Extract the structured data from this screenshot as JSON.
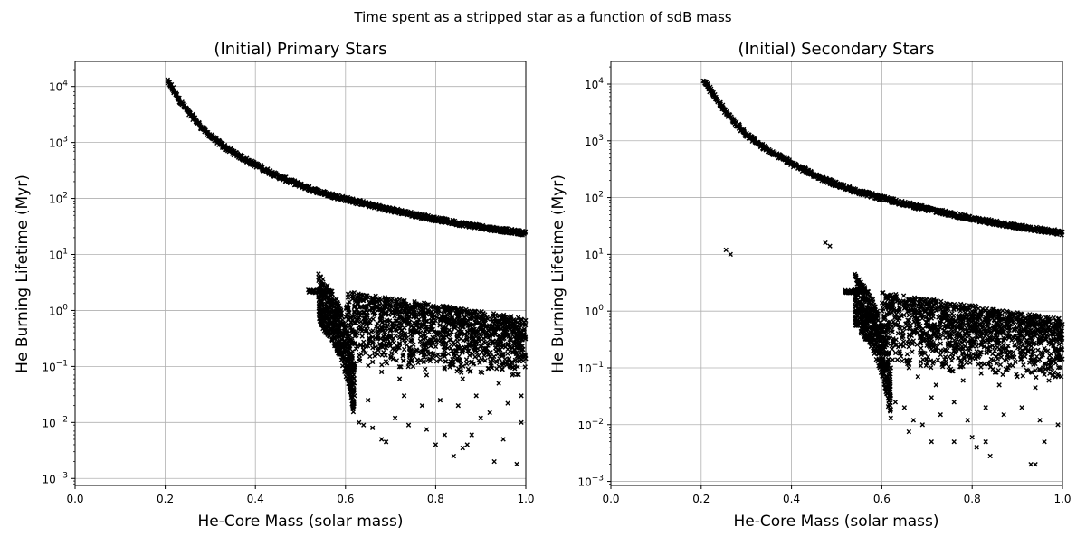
{
  "figure": {
    "suptitle": "Time spent as a stripped star as a function of sdB mass"
  },
  "chart_data": [
    {
      "type": "scatter",
      "title": "(Initial) Primary Stars",
      "xlabel": "He-Core Mass (solar mass)",
      "ylabel": "He Burning Lifetime (Myr)",
      "xlim": [
        0.0,
        1.0
      ],
      "ylim": [
        0.00075,
        28000
      ],
      "yscale": "log",
      "grid": true,
      "marker": "x",
      "marker_color": "#000000",
      "x_ticks": [
        {
          "value": 0.0,
          "label": "0.0"
        },
        {
          "value": 0.2,
          "label": "0.2"
        },
        {
          "value": 0.4,
          "label": "0.4"
        },
        {
          "value": 0.6,
          "label": "0.6"
        },
        {
          "value": 0.8,
          "label": "0.8"
        },
        {
          "value": 1.0,
          "label": "1.0"
        }
      ],
      "y_ticks": [
        {
          "value": 0.001,
          "base": "10",
          "exp": "−3"
        },
        {
          "value": 0.01,
          "base": "10",
          "exp": "−2"
        },
        {
          "value": 0.1,
          "base": "10",
          "exp": "−1"
        },
        {
          "value": 1,
          "base": "10",
          "exp": "0"
        },
        {
          "value": 10,
          "base": "10",
          "exp": "1"
        },
        {
          "value": 100,
          "base": "10",
          "exp": "2"
        },
        {
          "value": 1000,
          "base": "10",
          "exp": "3"
        },
        {
          "value": 10000,
          "base": "10",
          "exp": "4"
        }
      ],
      "upper_sequence": [
        [
          0.205,
          12000
        ],
        [
          0.21,
          11000
        ],
        [
          0.22,
          8000
        ],
        [
          0.23,
          6000
        ],
        [
          0.24,
          4600
        ],
        [
          0.25,
          3600
        ],
        [
          0.26,
          2900
        ],
        [
          0.28,
          1900
        ],
        [
          0.3,
          1300
        ],
        [
          0.33,
          850
        ],
        [
          0.36,
          600
        ],
        [
          0.4,
          400
        ],
        [
          0.45,
          250
        ],
        [
          0.5,
          170
        ],
        [
          0.55,
          125
        ],
        [
          0.6,
          98
        ],
        [
          0.65,
          78
        ],
        [
          0.7,
          63
        ],
        [
          0.75,
          52
        ],
        [
          0.8,
          43
        ],
        [
          0.85,
          36
        ],
        [
          0.9,
          31
        ],
        [
          0.95,
          27
        ],
        [
          1.0,
          24
        ]
      ],
      "lower_flat": [
        [
          0.52,
          2.2
        ],
        [
          0.53,
          2.2
        ],
        [
          0.54,
          2.25
        ],
        [
          0.55,
          2.25
        ],
        [
          0.56,
          2.3
        ]
      ],
      "lower_ridge": [
        [
          0.54,
          4.5
        ],
        [
          0.55,
          3.6
        ],
        [
          0.56,
          2.8
        ],
        [
          0.57,
          2.2
        ],
        [
          0.58,
          1.6
        ],
        [
          0.59,
          1.0
        ],
        [
          0.6,
          0.55
        ],
        [
          0.61,
          0.28
        ],
        [
          0.615,
          0.14
        ],
        [
          0.62,
          0.1
        ]
      ],
      "lower_cloud": [
        [
          0.62,
          1.2
        ],
        [
          0.63,
          0.9
        ],
        [
          0.64,
          1.5
        ],
        [
          0.65,
          0.6
        ],
        [
          0.66,
          1.1
        ],
        [
          0.67,
          0.35
        ],
        [
          0.68,
          0.8
        ],
        [
          0.69,
          1.3
        ],
        [
          0.7,
          0.45
        ],
        [
          0.71,
          0.9
        ],
        [
          0.72,
          0.25
        ],
        [
          0.73,
          0.7
        ],
        [
          0.74,
          1.0
        ],
        [
          0.75,
          0.4
        ],
        [
          0.76,
          0.6
        ],
        [
          0.77,
          0.18
        ],
        [
          0.78,
          0.85
        ],
        [
          0.79,
          0.5
        ],
        [
          0.8,
          0.3
        ],
        [
          0.81,
          0.7
        ],
        [
          0.82,
          0.15
        ],
        [
          0.83,
          0.45
        ],
        [
          0.84,
          0.6
        ],
        [
          0.85,
          0.22
        ],
        [
          0.86,
          0.5
        ],
        [
          0.87,
          0.35
        ],
        [
          0.88,
          0.12
        ],
        [
          0.89,
          0.4
        ],
        [
          0.9,
          0.55
        ],
        [
          0.91,
          0.2
        ],
        [
          0.92,
          0.3
        ],
        [
          0.93,
          0.45
        ],
        [
          0.94,
          0.1
        ],
        [
          0.95,
          0.35
        ],
        [
          0.96,
          0.25
        ],
        [
          0.97,
          0.5
        ],
        [
          0.98,
          0.15
        ],
        [
          0.99,
          0.4
        ],
        [
          0.64,
          0.2
        ],
        [
          0.66,
          0.12
        ],
        [
          0.68,
          0.08
        ],
        [
          0.7,
          0.15
        ],
        [
          0.72,
          0.06
        ],
        [
          0.75,
          0.1
        ],
        [
          0.78,
          0.07
        ],
        [
          0.82,
          0.09
        ],
        [
          0.86,
          0.06
        ],
        [
          0.9,
          0.08
        ],
        [
          0.94,
          0.05
        ],
        [
          0.97,
          0.07
        ],
        [
          0.63,
          0.01
        ],
        [
          0.64,
          0.009
        ],
        [
          0.66,
          0.008
        ],
        [
          0.68,
          0.005
        ],
        [
          0.69,
          0.0045
        ],
        [
          0.71,
          0.012
        ],
        [
          0.74,
          0.009
        ],
        [
          0.78,
          0.0075
        ],
        [
          0.8,
          0.004
        ],
        [
          0.82,
          0.006
        ],
        [
          0.84,
          0.0025
        ],
        [
          0.86,
          0.0035
        ],
        [
          0.87,
          0.004
        ],
        [
          0.88,
          0.006
        ],
        [
          0.9,
          0.012
        ],
        [
          0.93,
          0.002
        ],
        [
          0.95,
          0.005
        ],
        [
          0.98,
          0.0018
        ],
        [
          0.99,
          0.01
        ],
        [
          0.62,
          0.03
        ],
        [
          0.65,
          0.025
        ],
        [
          0.73,
          0.03
        ],
        [
          0.77,
          0.02
        ],
        [
          0.81,
          0.025
        ],
        [
          0.85,
          0.02
        ],
        [
          0.89,
          0.03
        ],
        [
          0.92,
          0.015
        ],
        [
          0.96,
          0.022
        ],
        [
          0.99,
          0.03
        ]
      ]
    },
    {
      "type": "scatter",
      "title": "(Initial) Secondary Stars",
      "xlabel": "He-Core Mass (solar mass)",
      "ylabel": "He Burning Lifetime (Myr)",
      "xlim": [
        0.0,
        1.0
      ],
      "ylim": [
        0.00085,
        25000
      ],
      "yscale": "log",
      "grid": true,
      "marker": "x",
      "marker_color": "#000000",
      "x_ticks": [
        {
          "value": 0.0,
          "label": "0.0"
        },
        {
          "value": 0.2,
          "label": "0.2"
        },
        {
          "value": 0.4,
          "label": "0.4"
        },
        {
          "value": 0.6,
          "label": "0.6"
        },
        {
          "value": 0.8,
          "label": "0.8"
        },
        {
          "value": 1.0,
          "label": "1.0"
        }
      ],
      "y_ticks": [
        {
          "value": 0.001,
          "base": "10",
          "exp": "−3"
        },
        {
          "value": 0.01,
          "base": "10",
          "exp": "−2"
        },
        {
          "value": 0.1,
          "base": "10",
          "exp": "−1"
        },
        {
          "value": 1,
          "base": "10",
          "exp": "0"
        },
        {
          "value": 10,
          "base": "10",
          "exp": "1"
        },
        {
          "value": 100,
          "base": "10",
          "exp": "2"
        },
        {
          "value": 1000,
          "base": "10",
          "exp": "3"
        },
        {
          "value": 10000,
          "base": "10",
          "exp": "4"
        }
      ],
      "upper_sequence": [
        [
          0.205,
          11500
        ],
        [
          0.21,
          10500
        ],
        [
          0.22,
          8000
        ],
        [
          0.23,
          6000
        ],
        [
          0.24,
          4600
        ],
        [
          0.25,
          3600
        ],
        [
          0.26,
          2900
        ],
        [
          0.28,
          1900
        ],
        [
          0.3,
          1300
        ],
        [
          0.33,
          850
        ],
        [
          0.36,
          600
        ],
        [
          0.4,
          400
        ],
        [
          0.45,
          250
        ],
        [
          0.5,
          170
        ],
        [
          0.55,
          125
        ],
        [
          0.6,
          98
        ],
        [
          0.65,
          78
        ],
        [
          0.7,
          63
        ],
        [
          0.75,
          52
        ],
        [
          0.8,
          43
        ],
        [
          0.85,
          36
        ],
        [
          0.9,
          31
        ],
        [
          0.95,
          27
        ],
        [
          1.0,
          24
        ]
      ],
      "outliers": [
        [
          0.255,
          12
        ],
        [
          0.265,
          10
        ],
        [
          0.475,
          16
        ],
        [
          0.485,
          14
        ]
      ],
      "lower_flat": [
        [
          0.52,
          2.2
        ],
        [
          0.53,
          2.2
        ],
        [
          0.54,
          2.25
        ],
        [
          0.55,
          2.25
        ],
        [
          0.56,
          2.3
        ]
      ],
      "lower_ridge": [
        [
          0.54,
          4.5
        ],
        [
          0.55,
          3.6
        ],
        [
          0.56,
          2.8
        ],
        [
          0.57,
          2.2
        ],
        [
          0.58,
          1.6
        ],
        [
          0.59,
          1.0
        ],
        [
          0.6,
          0.55
        ],
        [
          0.61,
          0.28
        ],
        [
          0.615,
          0.14
        ],
        [
          0.62,
          0.1
        ]
      ],
      "lower_cloud": [
        [
          0.62,
          1.1
        ],
        [
          0.63,
          0.8
        ],
        [
          0.64,
          1.4
        ],
        [
          0.65,
          0.5
        ],
        [
          0.66,
          1.0
        ],
        [
          0.67,
          0.3
        ],
        [
          0.68,
          0.75
        ],
        [
          0.69,
          1.2
        ],
        [
          0.7,
          0.4
        ],
        [
          0.71,
          0.85
        ],
        [
          0.72,
          0.2
        ],
        [
          0.73,
          0.6
        ],
        [
          0.74,
          0.9
        ],
        [
          0.75,
          0.35
        ],
        [
          0.76,
          0.55
        ],
        [
          0.77,
          0.15
        ],
        [
          0.78,
          0.7
        ],
        [
          0.79,
          0.45
        ],
        [
          0.8,
          0.25
        ],
        [
          0.81,
          0.6
        ],
        [
          0.82,
          0.12
        ],
        [
          0.83,
          0.4
        ],
        [
          0.84,
          0.5
        ],
        [
          0.85,
          0.2
        ],
        [
          0.86,
          0.45
        ],
        [
          0.87,
          0.3
        ],
        [
          0.88,
          0.1
        ],
        [
          0.89,
          0.35
        ],
        [
          0.9,
          0.5
        ],
        [
          0.91,
          0.18
        ],
        [
          0.92,
          0.28
        ],
        [
          0.93,
          0.4
        ],
        [
          0.94,
          0.09
        ],
        [
          0.95,
          0.3
        ],
        [
          0.96,
          0.22
        ],
        [
          0.97,
          0.45
        ],
        [
          0.98,
          0.13
        ],
        [
          0.99,
          0.35
        ],
        [
          0.64,
          0.18
        ],
        [
          0.66,
          0.1
        ],
        [
          0.68,
          0.07
        ],
        [
          0.7,
          0.12
        ],
        [
          0.72,
          0.05
        ],
        [
          0.75,
          0.09
        ],
        [
          0.78,
          0.06
        ],
        [
          0.82,
          0.08
        ],
        [
          0.86,
          0.05
        ],
        [
          0.9,
          0.07
        ],
        [
          0.94,
          0.045
        ],
        [
          0.97,
          0.06
        ],
        [
          0.63,
          0.025
        ],
        [
          0.65,
          0.02
        ],
        [
          0.67,
          0.012
        ],
        [
          0.69,
          0.01
        ],
        [
          0.71,
          0.03
        ],
        [
          0.73,
          0.015
        ],
        [
          0.76,
          0.025
        ],
        [
          0.79,
          0.012
        ],
        [
          0.83,
          0.02
        ],
        [
          0.87,
          0.015
        ],
        [
          0.91,
          0.02
        ],
        [
          0.95,
          0.012
        ],
        [
          0.99,
          0.01
        ],
        [
          0.66,
          0.0075
        ],
        [
          0.71,
          0.005
        ],
        [
          0.76,
          0.005
        ],
        [
          0.8,
          0.006
        ],
        [
          0.81,
          0.004
        ],
        [
          0.83,
          0.005
        ],
        [
          0.84,
          0.0028
        ],
        [
          0.93,
          0.002
        ],
        [
          0.94,
          0.002
        ],
        [
          0.96,
          0.005
        ]
      ]
    }
  ]
}
